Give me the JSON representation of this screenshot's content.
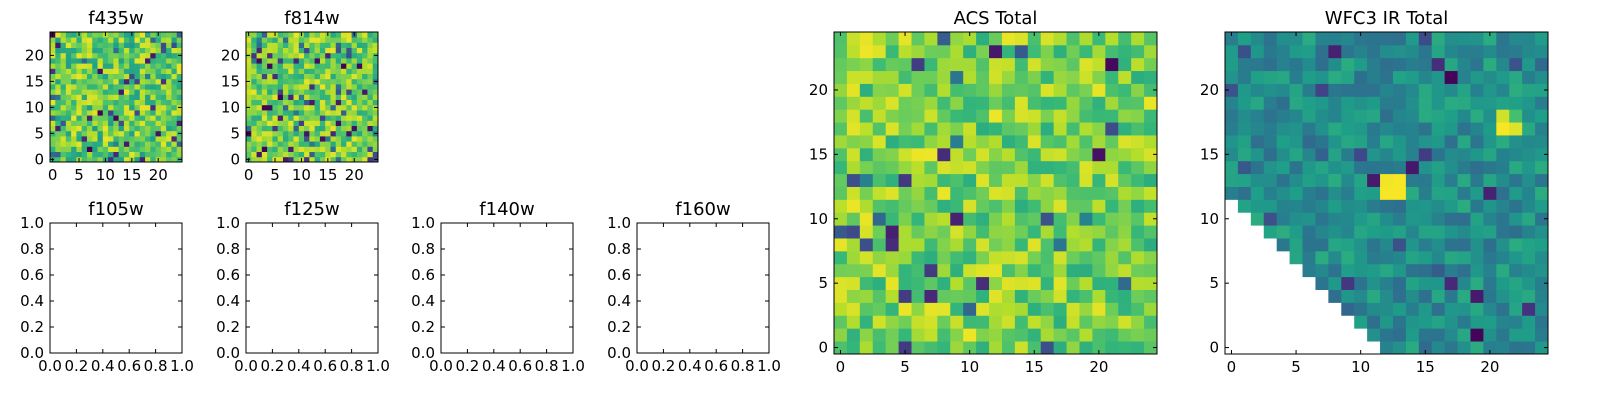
{
  "chart_data": [
    {
      "type": "heatmap",
      "title": "f435w",
      "grid_size": 25,
      "seed": 11,
      "value_range": [
        0.55,
        0.97
      ],
      "outlier_rate": 0.07,
      "xticks": [
        0,
        5,
        10,
        15,
        20
      ],
      "yticks": [
        0,
        5,
        10,
        15,
        20
      ],
      "xlim": [
        -0.5,
        24.5
      ],
      "ylim": [
        -0.5,
        24.5
      ],
      "colormap": "viridis"
    },
    {
      "type": "heatmap",
      "title": "f814w",
      "grid_size": 25,
      "seed": 29,
      "value_range": [
        0.6,
        0.97
      ],
      "outlier_rate": 0.1,
      "xticks": [
        0,
        5,
        10,
        15,
        20
      ],
      "yticks": [
        0,
        5,
        10,
        15,
        20
      ],
      "xlim": [
        -0.5,
        24.5
      ],
      "ylim": [
        -0.5,
        24.5
      ],
      "colormap": "viridis"
    },
    {
      "type": "heatmap",
      "title": "f105w",
      "empty": true,
      "xticks": [
        "0.0",
        "0.2",
        "0.4",
        "0.6",
        "0.8",
        "1.0"
      ],
      "yticks": [
        "0.0",
        "0.2",
        "0.4",
        "0.6",
        "0.8",
        "1.0"
      ],
      "xlim": [
        0,
        1
      ],
      "ylim": [
        0,
        1
      ]
    },
    {
      "type": "heatmap",
      "title": "f125w",
      "empty": true,
      "xticks": [
        "0.0",
        "0.2",
        "0.4",
        "0.6",
        "0.8",
        "1.0"
      ],
      "yticks": [
        "0.0",
        "0.2",
        "0.4",
        "0.6",
        "0.8",
        "1.0"
      ],
      "xlim": [
        0,
        1
      ],
      "ylim": [
        0,
        1
      ]
    },
    {
      "type": "heatmap",
      "title": "f140w",
      "empty": true,
      "xticks": [
        "0.0",
        "0.2",
        "0.4",
        "0.6",
        "0.8",
        "1.0"
      ],
      "yticks": [
        "0.0",
        "0.2",
        "0.4",
        "0.6",
        "0.8",
        "1.0"
      ],
      "xlim": [
        0,
        1
      ],
      "ylim": [
        0,
        1
      ]
    },
    {
      "type": "heatmap",
      "title": "f160w",
      "empty": true,
      "xticks": [
        "0.0",
        "0.2",
        "0.4",
        "0.6",
        "0.8",
        "1.0"
      ],
      "yticks": [
        "0.0",
        "0.2",
        "0.4",
        "0.6",
        "0.8",
        "1.0"
      ],
      "xlim": [
        0,
        1
      ],
      "ylim": [
        0,
        1
      ]
    },
    {
      "type": "heatmap",
      "title": "ACS Total",
      "grid_size": 25,
      "seed": 53,
      "value_range": [
        0.62,
        0.98
      ],
      "outlier_rate": 0.06,
      "xticks": [
        0,
        5,
        10,
        15,
        20
      ],
      "yticks": [
        0,
        5,
        10,
        15,
        20
      ],
      "xlim": [
        -0.5,
        24.5
      ],
      "ylim": [
        -0.5,
        24.5
      ],
      "colormap": "viridis"
    },
    {
      "type": "heatmap",
      "title": "WFC3 IR Total",
      "grid_size": 25,
      "seed": 71,
      "value_range": [
        0.36,
        0.62
      ],
      "outlier_rate": 0.06,
      "triangle_mask": true,
      "hot_spots": [
        {
          "x": 21,
          "y": 17,
          "value": 0.99
        },
        {
          "x": 22,
          "y": 17,
          "value": 0.95
        },
        {
          "x": 21,
          "y": 18,
          "value": 0.93
        },
        {
          "x": 22,
          "y": 18,
          "value": 0.7
        },
        {
          "x": 12,
          "y": 12,
          "value": 0.99
        },
        {
          "x": 13,
          "y": 12,
          "value": 0.99
        },
        {
          "x": 12,
          "y": 13,
          "value": 0.98
        },
        {
          "x": 13,
          "y": 13,
          "value": 0.99
        }
      ],
      "xticks": [
        0,
        5,
        10,
        15,
        20
      ],
      "yticks": [
        0,
        5,
        10,
        15,
        20
      ],
      "xlim": [
        -0.5,
        24.5
      ],
      "ylim": [
        -0.5,
        24.5
      ],
      "colormap": "viridis"
    }
  ]
}
